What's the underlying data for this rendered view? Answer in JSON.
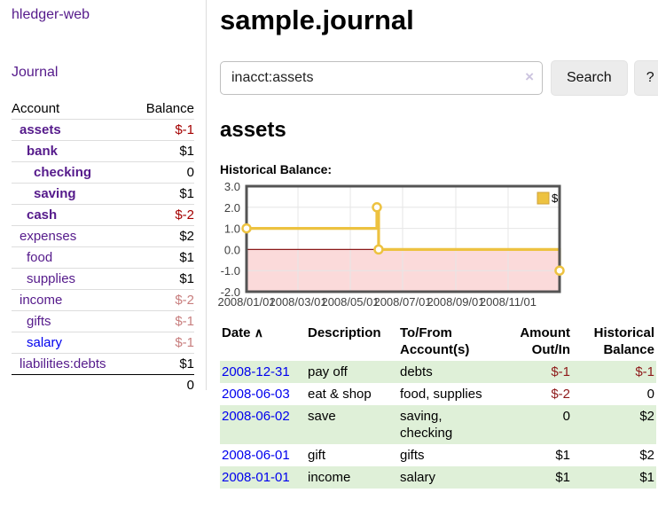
{
  "sidebar": {
    "app_title": "hledger-web",
    "journal_label": "Journal",
    "accounts": {
      "headers": {
        "account": "Account",
        "balance": "Balance"
      },
      "rows": [
        {
          "name": "assets",
          "depth": 1,
          "bold": true,
          "balance": "$-1"
        },
        {
          "name": "bank",
          "depth": 2,
          "bold": true,
          "balance": "$1"
        },
        {
          "name": "checking",
          "depth": 3,
          "bold": true,
          "balance": "0"
        },
        {
          "name": "saving",
          "depth": 3,
          "bold": true,
          "balance": "$1"
        },
        {
          "name": "cash",
          "depth": 2,
          "bold": true,
          "balance": "$-2"
        },
        {
          "name": "expenses",
          "depth": 1,
          "bold": false,
          "balance": "$2"
        },
        {
          "name": "food",
          "depth": 2,
          "bold": false,
          "balance": "$1"
        },
        {
          "name": "supplies",
          "depth": 2,
          "bold": false,
          "balance": "$1"
        },
        {
          "name": "income",
          "depth": 1,
          "bold": false,
          "balance": "$-2"
        },
        {
          "name": "gifts",
          "depth": 2,
          "bold": false,
          "balance": "$-1"
        },
        {
          "name": "salary",
          "depth": 2,
          "bold": false,
          "balance": "$-1"
        },
        {
          "name": "liabilities:debts",
          "depth": 1,
          "bold": false,
          "balance": "$1"
        }
      ],
      "total": "0"
    }
  },
  "main": {
    "title": "sample.journal",
    "search": {
      "value": "inacct:assets",
      "clear_icon": "×",
      "button_label": "Search",
      "help_label": "?"
    },
    "account_heading": "assets",
    "chart_label": "Historical Balance:"
  },
  "chart_data": {
    "type": "line",
    "step": true,
    "title": "Historical Balance",
    "x_range": [
      "2008-01-01",
      "2008-12-31"
    ],
    "ylim": [
      -2,
      3
    ],
    "yticks": [
      3.0,
      2.0,
      1.0,
      0.0,
      -1.0,
      -2.0
    ],
    "xticks": [
      "2008/01/01",
      "2008/03/01",
      "2008/05/01",
      "2008/07/01",
      "2008/09/01",
      "2008/11/01"
    ],
    "series": [
      {
        "name": "$",
        "color": "#edc240",
        "points": [
          [
            "2008-01-01",
            1
          ],
          [
            "2008-06-01",
            2
          ],
          [
            "2008-06-03",
            0
          ],
          [
            "2008-12-31",
            -1
          ]
        ]
      }
    ],
    "legend_position": "top-right",
    "grid": true,
    "negative_fill": "#fbdada",
    "zero_line_color": "#8b1a1a",
    "border_color": "#545454"
  },
  "register": {
    "headers": [
      "Date",
      "Description",
      "To/From Account(s)",
      "Amount Out/In",
      "Historical Balance"
    ],
    "sort_icon": "∧",
    "rows": [
      {
        "date": "2008-12-31",
        "description": "pay off",
        "accounts": "debts",
        "amount": "$-1",
        "balance": "$-1"
      },
      {
        "date": "2008-06-03",
        "description": "eat & shop",
        "accounts": "food, supplies",
        "amount": "$-2",
        "balance": "0"
      },
      {
        "date": "2008-06-02",
        "description": "save",
        "accounts": "saving, checking",
        "amount": "0",
        "balance": "$2"
      },
      {
        "date": "2008-06-01",
        "description": "gift",
        "accounts": "gifts",
        "amount": "$1",
        "balance": "$2"
      },
      {
        "date": "2008-01-01",
        "description": "income",
        "accounts": "salary",
        "amount": "$1",
        "balance": "$1"
      }
    ]
  },
  "colors": {
    "link_purple": "#551a8b",
    "link_blue": "#0000ee",
    "negative_strong": "#a40000",
    "negative_soft": "#c87e7e",
    "negative_table": "#8e1a1a",
    "row_stripe_green": "#dff0d8",
    "chart_gold": "#edc240",
    "chart_negative_fill": "#fbdada",
    "chart_zero_line": "#8b1a1a",
    "chart_border": "#545454"
  }
}
